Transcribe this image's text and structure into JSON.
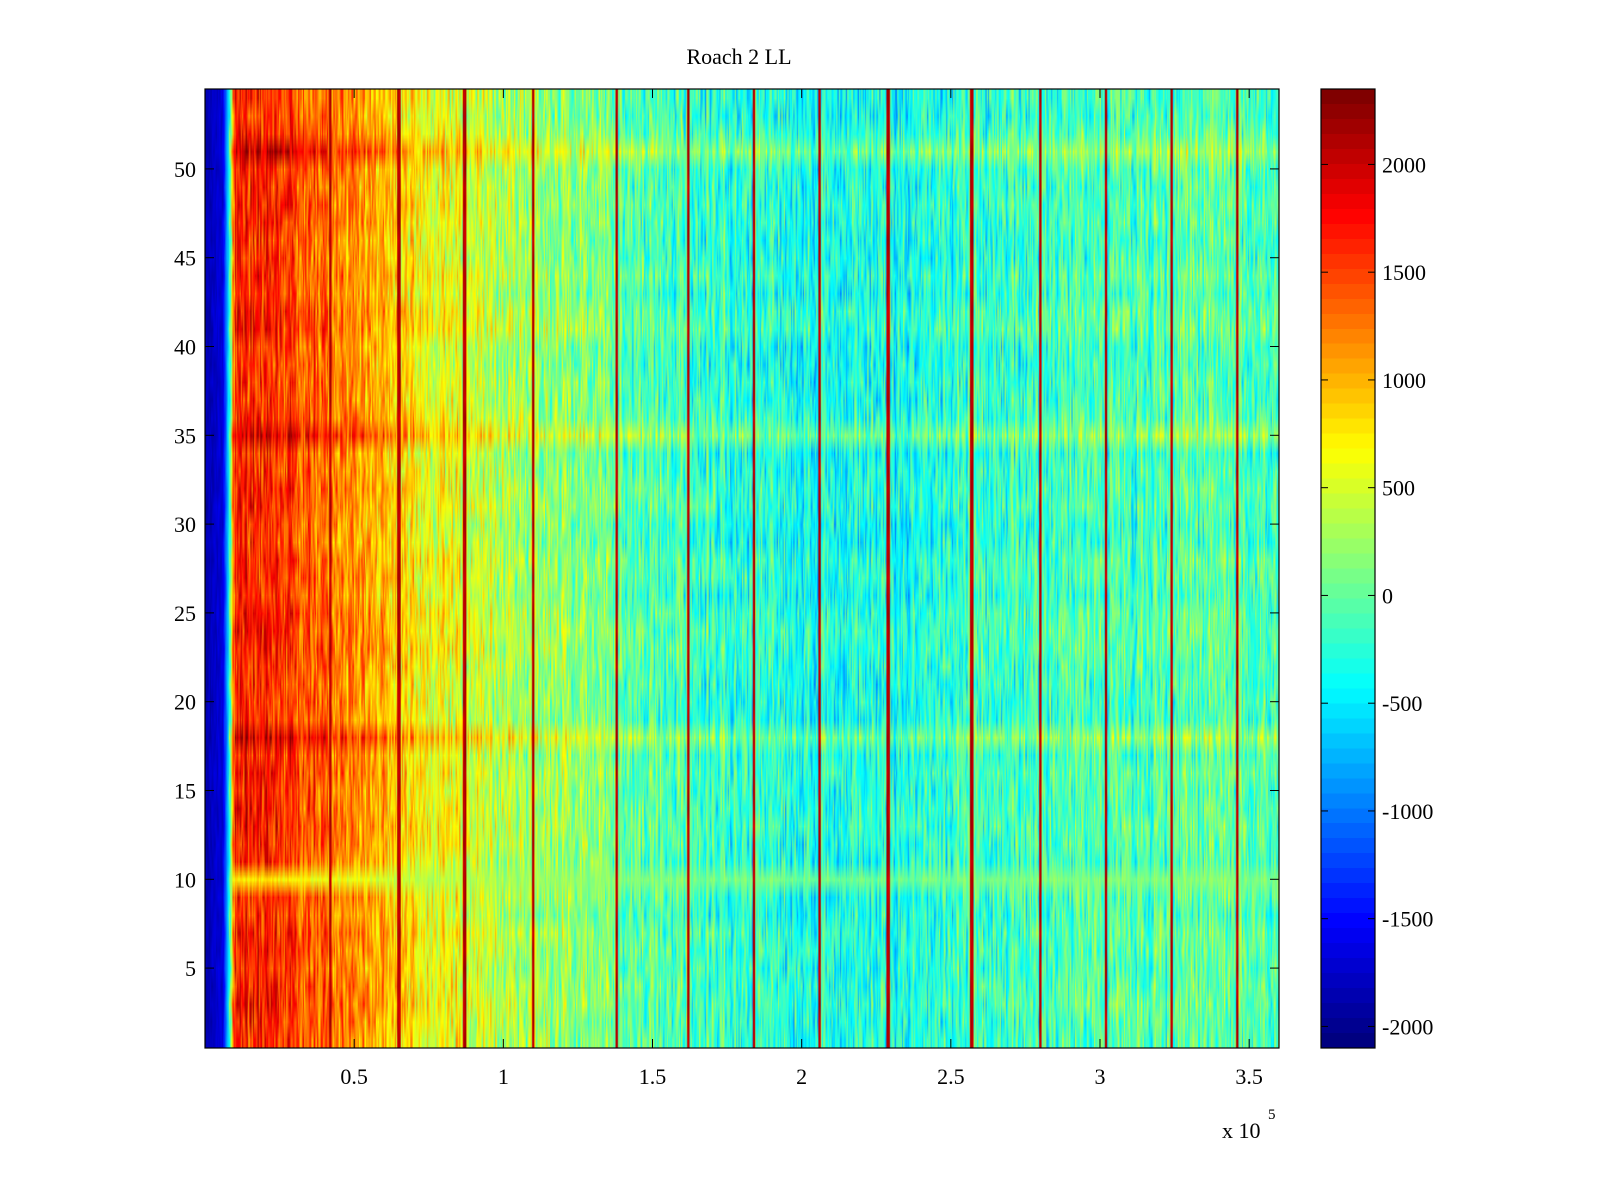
{
  "chart_data": {
    "type": "heatmap",
    "title": "Roach 2 LL",
    "xlabel": "",
    "ylabel": "",
    "x_exponent_label": "x 10",
    "x_exponent_power": "5",
    "xlim": [
      0,
      3.6
    ],
    "ylim": [
      0.5,
      54.5
    ],
    "x_ticks": [
      0.5,
      1,
      1.5,
      2,
      2.5,
      3,
      3.5
    ],
    "x_tick_labels": [
      "0.5",
      "1",
      "1.5",
      "2",
      "2.5",
      "3",
      "3.5"
    ],
    "y_ticks": [
      5,
      10,
      15,
      20,
      25,
      30,
      35,
      40,
      45,
      50
    ],
    "y_tick_labels": [
      "5",
      "10",
      "15",
      "20",
      "25",
      "30",
      "35",
      "40",
      "45",
      "50"
    ],
    "rows": 54,
    "colorbar": {
      "colormap": "jet",
      "clim": [
        -2100,
        2350
      ],
      "ticks": [
        2000,
        1500,
        1000,
        500,
        0,
        -500,
        -1000,
        -1500,
        -2000
      ],
      "tick_labels": [
        "2000",
        "1500",
        "1000",
        "500",
        "0",
        "-500",
        "-1000",
        "-1500",
        "-2000"
      ]
    },
    "column_profile": [
      {
        "x": 0.0,
        "value": -1900
      },
      {
        "x": 0.06,
        "value": -1700
      },
      {
        "x": 0.08,
        "value": -500
      },
      {
        "x": 0.1,
        "value": 1700
      },
      {
        "x": 0.2,
        "value": 1650
      },
      {
        "x": 0.35,
        "value": 1400
      },
      {
        "x": 0.55,
        "value": 1050
      },
      {
        "x": 0.75,
        "value": 700
      },
      {
        "x": 1.0,
        "value": 350
      },
      {
        "x": 1.3,
        "value": 100
      },
      {
        "x": 1.6,
        "value": -150
      },
      {
        "x": 2.0,
        "value": -350
      },
      {
        "x": 2.4,
        "value": -300
      },
      {
        "x": 2.8,
        "value": -150
      },
      {
        "x": 3.2,
        "value": -100
      },
      {
        "x": 3.6,
        "value": -50
      }
    ],
    "bright_stripes_x": [
      0.42,
      0.65,
      0.87,
      1.1,
      1.38,
      1.62,
      1.84,
      2.06,
      2.29,
      2.57,
      2.8,
      3.02,
      3.24,
      3.46
    ],
    "bright_stripe_value": 2100,
    "cool_rows": [
      10
    ],
    "hot_rows": [
      35,
      18,
      51
    ]
  }
}
